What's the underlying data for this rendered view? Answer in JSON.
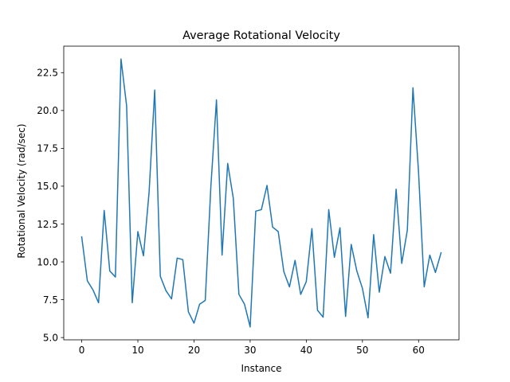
{
  "chart_data": {
    "type": "line",
    "title": "Average Rotational Velocity",
    "xlabel": "Instance",
    "ylabel": "Rotational Velocity (rad/sec)",
    "xlim": [
      -3.2,
      67.2
    ],
    "ylim": [
      4.85,
      24.25
    ],
    "xticks": [
      0,
      10,
      20,
      30,
      40,
      50,
      60
    ],
    "yticks": [
      5.0,
      7.5,
      10.0,
      12.5,
      15.0,
      17.5,
      20.0,
      22.5
    ],
    "ytick_labels": [
      "5.0",
      "7.5",
      "10.0",
      "12.5",
      "15.0",
      "17.5",
      "20.0",
      "22.5"
    ],
    "grid": false,
    "legend": "none",
    "series": [
      {
        "color": "#1f77b4",
        "x": [
          0,
          1,
          2,
          3,
          4,
          5,
          6,
          7,
          8,
          9,
          10,
          11,
          12,
          13,
          14,
          15,
          16,
          17,
          18,
          19,
          20,
          21,
          22,
          23,
          24,
          25,
          26,
          27,
          28,
          29,
          30,
          31,
          32,
          33,
          34,
          35,
          36,
          37,
          38,
          39,
          40,
          41,
          42,
          43,
          44,
          45,
          46,
          47,
          48,
          49,
          50,
          51,
          52,
          53,
          54,
          55,
          56,
          57,
          58,
          59,
          60,
          61,
          62,
          63,
          64
        ],
        "y": [
          11.65,
          8.75,
          8.15,
          7.3,
          13.4,
          9.4,
          9.0,
          23.4,
          20.3,
          7.3,
          12.0,
          10.4,
          14.6,
          21.35,
          9.05,
          8.1,
          7.55,
          10.25,
          10.15,
          6.7,
          5.95,
          7.2,
          7.45,
          14.95,
          20.7,
          10.45,
          16.5,
          14.2,
          7.85,
          7.2,
          5.7,
          13.35,
          13.45,
          15.05,
          12.3,
          12.0,
          9.35,
          8.35,
          10.1,
          7.85,
          8.7,
          12.2,
          6.8,
          6.35,
          13.45,
          10.3,
          12.25,
          6.4,
          11.15,
          9.4,
          8.25,
          6.3,
          11.8,
          8.0,
          10.35,
          9.25,
          14.8,
          9.9,
          12.1,
          21.5,
          15.9,
          8.35,
          10.45,
          9.3,
          10.6
        ]
      }
    ]
  }
}
